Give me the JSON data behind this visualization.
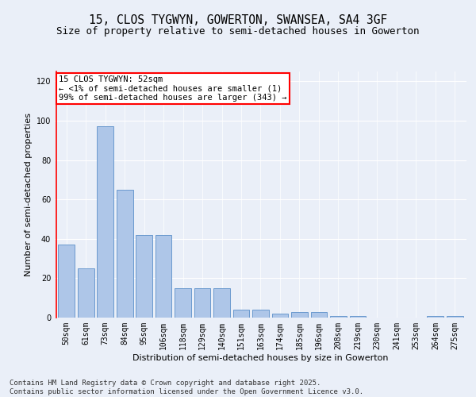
{
  "title1": "15, CLOS TYGWYN, GOWERTON, SWANSEA, SA4 3GF",
  "title2": "Size of property relative to semi-detached houses in Gowerton",
  "xlabel": "Distribution of semi-detached houses by size in Gowerton",
  "ylabel": "Number of semi-detached properties",
  "categories": [
    "50sqm",
    "61sqm",
    "73sqm",
    "84sqm",
    "95sqm",
    "106sqm",
    "118sqm",
    "129sqm",
    "140sqm",
    "151sqm",
    "163sqm",
    "174sqm",
    "185sqm",
    "196sqm",
    "208sqm",
    "219sqm",
    "230sqm",
    "241sqm",
    "253sqm",
    "264sqm",
    "275sqm"
  ],
  "values": [
    37,
    25,
    97,
    65,
    42,
    42,
    15,
    15,
    15,
    4,
    4,
    2,
    3,
    3,
    1,
    1,
    0,
    0,
    0,
    1,
    1
  ],
  "bar_color": "#aec6e8",
  "bar_edge_color": "#5b8fc9",
  "highlight_bar_index": 0,
  "annotation_box_text": "15 CLOS TYGWYN: 52sqm\n← <1% of semi-detached houses are smaller (1)\n99% of semi-detached houses are larger (343) →",
  "footer_text": "Contains HM Land Registry data © Crown copyright and database right 2025.\nContains public sector information licensed under the Open Government Licence v3.0.",
  "ylim": [
    0,
    125
  ],
  "yticks": [
    0,
    20,
    40,
    60,
    80,
    100,
    120
  ],
  "bg_color": "#eaeff8",
  "plot_bg_color": "#eaeff8",
  "title1_fontsize": 10.5,
  "title2_fontsize": 9,
  "axis_label_fontsize": 8,
  "tick_fontsize": 7,
  "annotation_fontsize": 7.5,
  "footer_fontsize": 6.5
}
